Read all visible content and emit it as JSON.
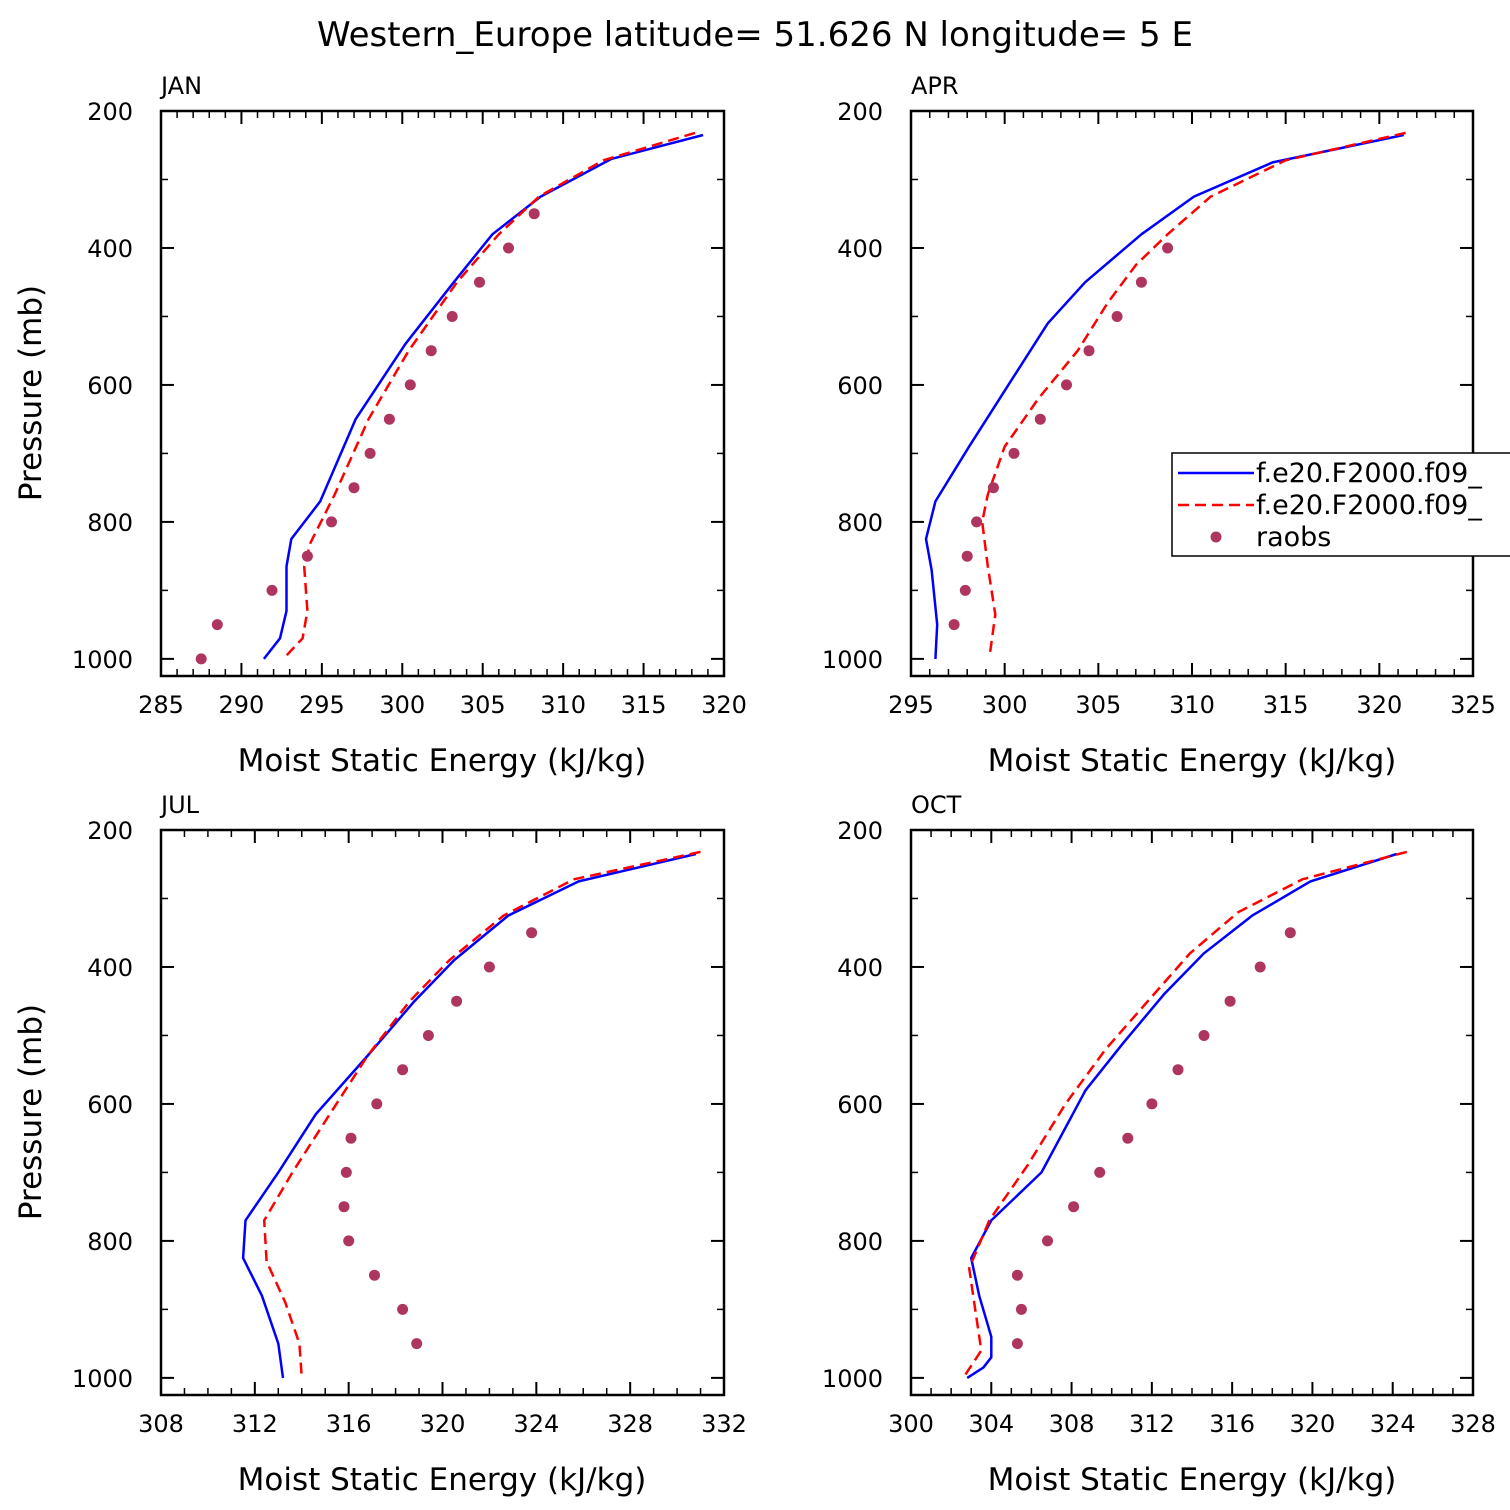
{
  "page_title": "Western_Europe  latitude= 51.626 N longitude= 5 E",
  "colors": {
    "model1": "#0000ff",
    "model2": "#ff0000",
    "raobs": "#ad3560"
  },
  "legend": {
    "items": [
      {
        "label": "f.e20.F2000.f09_",
        "style": "solid",
        "color": "#0000ff"
      },
      {
        "label": "f.e20.F2000.f09_",
        "style": "dashed",
        "color": "#ff0000"
      },
      {
        "label": "raobs",
        "style": "marker",
        "color": "#ad3560"
      }
    ]
  },
  "chart_data": [
    {
      "type": "line",
      "panel_label": "JAN",
      "xlabel": "Moist Static Energy (kJ/kg)",
      "ylabel": "Pressure (mb)",
      "xlim": [
        285,
        320
      ],
      "xticks": [
        285,
        290,
        295,
        300,
        305,
        310,
        315,
        320
      ],
      "ylim": [
        200,
        1025
      ],
      "yticks": [
        200,
        400,
        600,
        800,
        1000
      ],
      "grid": false,
      "series": [
        {
          "style": "solid",
          "color": "#0000ff",
          "x": [
            318.7,
            313.0,
            308.6,
            305.6,
            303.2,
            300.2,
            297.1,
            294.9,
            293.1,
            292.8,
            292.8,
            292.4,
            291.4
          ],
          "y": [
            235,
            270,
            325,
            380,
            450,
            540,
            650,
            770,
            825,
            865,
            930,
            970,
            1000
          ]
        },
        {
          "style": "dashed",
          "color": "#ff0000",
          "x": [
            318.2,
            312.5,
            308.5,
            306.0,
            303.4,
            300.4,
            297.9,
            295.8,
            294.3,
            293.9,
            294.1,
            293.8,
            292.6
          ],
          "y": [
            232,
            272,
            325,
            380,
            450,
            550,
            650,
            760,
            830,
            865,
            930,
            970,
            1000
          ]
        }
      ],
      "points": {
        "x": [
          308.2,
          306.6,
          304.8,
          303.1,
          301.8,
          300.5,
          299.2,
          298.0,
          297.0,
          295.6,
          294.1,
          291.9,
          288.5,
          287.5
        ],
        "y": [
          350,
          400,
          450,
          500,
          550,
          600,
          650,
          700,
          750,
          800,
          850,
          900,
          950,
          1000
        ]
      }
    },
    {
      "type": "line",
      "panel_label": "APR",
      "xlabel": "Moist Static Energy (kJ/kg)",
      "ylabel": "",
      "xlim": [
        295,
        325
      ],
      "xticks": [
        295,
        300,
        305,
        310,
        315,
        320,
        325
      ],
      "ylim": [
        200,
        1025
      ],
      "yticks": [
        200,
        400,
        600,
        800,
        1000
      ],
      "grid": false,
      "series": [
        {
          "style": "solid",
          "color": "#0000ff",
          "x": [
            321.3,
            314.3,
            310.1,
            307.3,
            304.3,
            302.3,
            300.2,
            298.1,
            296.3,
            295.8,
            296.1,
            296.4,
            296.3
          ],
          "y": [
            235,
            275,
            325,
            380,
            450,
            510,
            600,
            690,
            770,
            825,
            870,
            950,
            1000
          ]
        },
        {
          "style": "dashed",
          "color": "#ff0000",
          "x": [
            321.4,
            315.0,
            311.0,
            308.7,
            307.0,
            305.5,
            303.9,
            301.8,
            300.0,
            299.1,
            298.8,
            299.1,
            299.5,
            299.2
          ],
          "y": [
            232,
            272,
            325,
            380,
            425,
            480,
            550,
            620,
            690,
            760,
            800,
            865,
            935,
            995
          ]
        }
      ],
      "points": {
        "x": [
          308.7,
          307.3,
          306.0,
          304.5,
          303.3,
          301.9,
          300.5,
          299.4,
          298.5,
          298.0,
          297.9,
          297.3
        ],
        "y": [
          400,
          450,
          500,
          550,
          600,
          650,
          700,
          750,
          800,
          850,
          900,
          950
        ]
      }
    },
    {
      "type": "line",
      "panel_label": "JUL",
      "xlabel": "Moist Static Energy (kJ/kg)",
      "ylabel": "Pressure (mb)",
      "xlim": [
        308,
        332
      ],
      "xticks": [
        308,
        312,
        316,
        320,
        324,
        328,
        332
      ],
      "ylim": [
        200,
        1025
      ],
      "yticks": [
        200,
        400,
        600,
        800,
        1000
      ],
      "grid": false,
      "series": [
        {
          "style": "solid",
          "color": "#0000ff",
          "x": [
            330.8,
            325.8,
            322.8,
            320.5,
            318.8,
            316.8,
            314.6,
            313.0,
            311.6,
            311.5,
            312.3,
            313.0,
            313.2
          ],
          "y": [
            235,
            275,
            325,
            390,
            450,
            530,
            615,
            700,
            770,
            825,
            880,
            950,
            1000
          ]
        },
        {
          "style": "dashed",
          "color": "#ff0000",
          "x": [
            331.0,
            325.6,
            322.6,
            320.3,
            318.6,
            316.8,
            315.1,
            313.6,
            312.4,
            312.5,
            313.3,
            313.9,
            314.0
          ],
          "y": [
            232,
            272,
            325,
            390,
            450,
            530,
            620,
            700,
            770,
            830,
            890,
            950,
            1000
          ]
        }
      ],
      "points": {
        "x": [
          323.8,
          322.0,
          320.6,
          319.4,
          318.3,
          317.2,
          316.1,
          315.9,
          315.8,
          316.0,
          317.1,
          318.3,
          318.9
        ],
        "y": [
          350,
          400,
          450,
          500,
          550,
          600,
          650,
          700,
          750,
          800,
          850,
          900,
          950
        ]
      }
    },
    {
      "type": "line",
      "panel_label": "OCT",
      "xlabel": "Moist Static Energy (kJ/kg)",
      "ylabel": "",
      "xlim": [
        300,
        328
      ],
      "xticks": [
        300,
        304,
        308,
        312,
        316,
        320,
        324,
        328
      ],
      "ylim": [
        200,
        1025
      ],
      "yticks": [
        200,
        400,
        600,
        800,
        1000
      ],
      "grid": false,
      "series": [
        {
          "style": "solid",
          "color": "#0000ff",
          "x": [
            324.2,
            319.9,
            317.0,
            314.6,
            312.6,
            310.6,
            308.7,
            306.5,
            304.0,
            303.0,
            303.4,
            304.0,
            304.0,
            303.6,
            302.8
          ],
          "y": [
            235,
            275,
            325,
            380,
            440,
            510,
            580,
            700,
            770,
            825,
            880,
            940,
            970,
            985,
            1000
          ]
        },
        {
          "style": "dashed",
          "color": "#ff0000",
          "x": [
            324.7,
            319.5,
            316.3,
            313.9,
            311.8,
            309.7,
            307.7,
            305.8,
            303.9,
            302.9,
            303.2,
            303.5,
            302.6
          ],
          "y": [
            232,
            272,
            320,
            380,
            450,
            520,
            600,
            690,
            770,
            840,
            900,
            960,
            1000
          ]
        }
      ],
      "points": {
        "x": [
          318.9,
          317.4,
          315.9,
          314.6,
          313.3,
          312.0,
          310.8,
          309.4,
          308.1,
          306.8,
          305.3,
          305.5,
          305.3
        ],
        "y": [
          350,
          400,
          450,
          500,
          550,
          600,
          650,
          700,
          750,
          800,
          850,
          900,
          950
        ]
      }
    }
  ]
}
